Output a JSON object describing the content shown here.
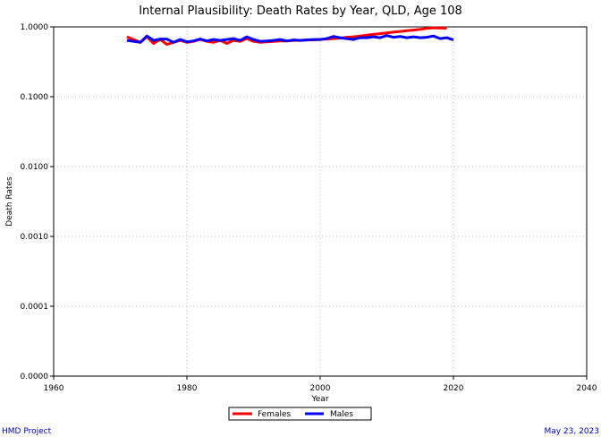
{
  "chart_data": {
    "type": "line",
    "title": "Internal Plausibility: Death Rates by Year, QLD, Age 108",
    "xlabel": "Year",
    "ylabel": "Death Rates",
    "x_ticks": [
      "1960",
      "1980",
      "2000",
      "2020",
      "2040"
    ],
    "x_tick_values": [
      1960,
      1980,
      2000,
      2020,
      2040
    ],
    "y_ticks": [
      "1.0000",
      "0.1000",
      "0.0100",
      "0.0010",
      "0.0001",
      "0.0000"
    ],
    "xlim": [
      1960,
      2040
    ],
    "ylim_log10": [
      -5,
      0
    ],
    "grid": true,
    "legend_position": "bottom-center",
    "series": [
      {
        "name": "Females",
        "color": "#ff0000",
        "x": [
          1971,
          1972,
          1973,
          1974,
          1975,
          1976,
          1977,
          1978,
          1979,
          1980,
          1981,
          1982,
          1983,
          1984,
          1985,
          1986,
          1987,
          1988,
          1989,
          1990,
          1991,
          1992,
          1993,
          1994,
          1995,
          1996,
          1997,
          1998,
          1999,
          2000,
          2001,
          2002,
          2003,
          2004,
          2005,
          2006,
          2007,
          2008,
          2009,
          2010,
          2011,
          2012,
          2013,
          2014,
          2015,
          2016,
          2017,
          2018,
          2019
        ],
        "values": [
          0.72,
          0.66,
          0.6,
          0.72,
          0.58,
          0.66,
          0.56,
          0.6,
          0.64,
          0.6,
          0.62,
          0.66,
          0.62,
          0.6,
          0.64,
          0.58,
          0.64,
          0.62,
          0.68,
          0.62,
          0.6,
          0.61,
          0.62,
          0.63,
          0.63,
          0.64,
          0.64,
          0.65,
          0.65,
          0.66,
          0.67,
          0.68,
          0.69,
          0.71,
          0.72,
          0.74,
          0.76,
          0.78,
          0.8,
          0.82,
          0.84,
          0.86,
          0.88,
          0.9,
          0.92,
          0.95,
          0.97,
          0.96,
          0.96
        ]
      },
      {
        "name": "Males",
        "color": "#0000ff",
        "x": [
          1971,
          1972,
          1973,
          1974,
          1975,
          1976,
          1977,
          1978,
          1979,
          1980,
          1981,
          1982,
          1983,
          1984,
          1985,
          1986,
          1987,
          1988,
          1989,
          1990,
          1991,
          1992,
          1993,
          1994,
          1995,
          1996,
          1997,
          1998,
          1999,
          2000,
          2001,
          2002,
          2003,
          2004,
          2005,
          2006,
          2007,
          2008,
          2009,
          2010,
          2011,
          2012,
          2013,
          2014,
          2015,
          2016,
          2017,
          2018,
          2019,
          2020
        ],
        "values": [
          0.64,
          0.62,
          0.6,
          0.74,
          0.64,
          0.67,
          0.67,
          0.6,
          0.66,
          0.61,
          0.63,
          0.67,
          0.63,
          0.66,
          0.64,
          0.66,
          0.68,
          0.64,
          0.72,
          0.66,
          0.62,
          0.63,
          0.64,
          0.66,
          0.63,
          0.65,
          0.64,
          0.65,
          0.66,
          0.66,
          0.68,
          0.73,
          0.7,
          0.68,
          0.66,
          0.7,
          0.7,
          0.72,
          0.7,
          0.75,
          0.71,
          0.73,
          0.7,
          0.72,
          0.7,
          0.71,
          0.74,
          0.68,
          0.7,
          0.65
        ]
      }
    ]
  },
  "footer": {
    "left": "HMD Project",
    "right": "May 23, 2023"
  }
}
